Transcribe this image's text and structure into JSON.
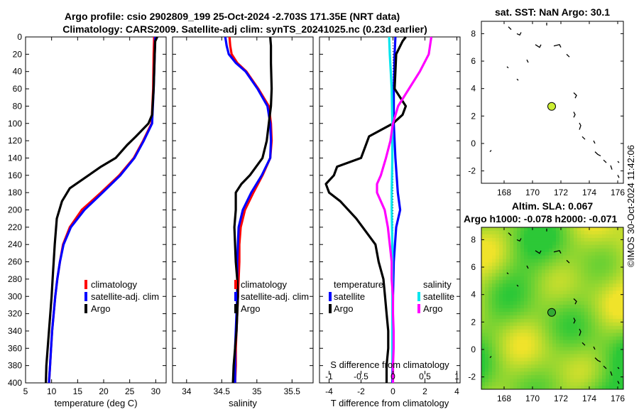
{
  "figure": {
    "title_line1": "Argo profile: csio 2902809_199 25-Oct-2024 -2.703S 171.35E (NRT data)",
    "title_line2": "Climatology: CARS2009. Satellite-adj clim: synTS_20241025.nc (0.23d earlier)",
    "footer": "©IMOS 30-Oct-2024 11:42:06"
  },
  "chart_data": [
    {
      "type": "line",
      "name": "temperature-profile",
      "xlabel": "temperature (deg C)",
      "ylabel": "",
      "xlim": [
        5,
        32
      ],
      "ylim": [
        400,
        0
      ],
      "xticks": [
        5,
        10,
        15,
        20,
        25,
        30
      ],
      "yticks": [
        0,
        20,
        40,
        60,
        80,
        100,
        120,
        140,
        160,
        180,
        200,
        220,
        240,
        260,
        280,
        300,
        320,
        340,
        360,
        380,
        400
      ],
      "series": [
        {
          "name": "climatology",
          "color": "#ff0000",
          "depth": [
            0,
            20,
            60,
            100,
            120,
            140,
            160,
            180,
            200,
            220,
            240,
            260,
            280,
            300,
            320,
            340,
            360,
            380,
            400
          ],
          "values": [
            29.7,
            29.6,
            29.5,
            29.2,
            27.6,
            25.8,
            23.0,
            19.5,
            15.8,
            13.5,
            12.2,
            11.6,
            11.1,
            10.7,
            10.4,
            10.1,
            9.9,
            9.7,
            9.5
          ]
        },
        {
          "name": "satellite-adj. clim",
          "color": "#0000ff",
          "depth": [
            0,
            20,
            60,
            100,
            120,
            140,
            160,
            180,
            200,
            220,
            240,
            260,
            280,
            300,
            320,
            340,
            360,
            380,
            400
          ],
          "values": [
            29.9,
            29.8,
            29.6,
            29.3,
            27.7,
            25.9,
            23.2,
            19.8,
            16.3,
            13.7,
            12.3,
            11.6,
            11.1,
            10.7,
            10.4,
            10.1,
            9.9,
            9.7,
            9.5
          ]
        },
        {
          "name": "Argo",
          "color": "#000000",
          "depth": [
            0,
            5,
            20,
            60,
            90,
            100,
            115,
            125,
            140,
            150,
            160,
            175,
            190,
            210,
            240,
            280,
            300,
            340,
            380,
            400
          ],
          "values": [
            30.3,
            29.9,
            29.8,
            29.6,
            29.3,
            28.6,
            26.2,
            24.5,
            22.3,
            19.5,
            17.1,
            13.5,
            12.0,
            11.0,
            10.6,
            10.2,
            10.0,
            9.5,
            9.0,
            8.9
          ]
        }
      ],
      "legend": [
        "climatology",
        "satellite-adj. clim",
        "Argo"
      ]
    },
    {
      "type": "line",
      "name": "salinity-profile",
      "xlabel": "salinity",
      "xlim": [
        33.8,
        35.8
      ],
      "ylim": [
        400,
        0
      ],
      "xticks": [
        34,
        34.5,
        35,
        35.5
      ],
      "series": [
        {
          "name": "climatology",
          "color": "#ff0000",
          "depth": [
            0,
            10,
            20,
            30,
            40,
            60,
            80,
            100,
            120,
            140,
            160,
            180,
            200,
            220,
            240,
            260,
            280,
            300,
            320,
            340,
            360,
            380,
            400
          ],
          "values": [
            34.61,
            34.62,
            34.64,
            34.72,
            34.85,
            35.02,
            35.17,
            35.2,
            35.21,
            35.19,
            35.08,
            34.95,
            34.83,
            34.77,
            34.75,
            34.75,
            34.74,
            34.73,
            34.72,
            34.71,
            34.7,
            34.7,
            34.69
          ]
        },
        {
          "name": "satellite-adj. clim",
          "color": "#0000ff",
          "depth": [
            0,
            10,
            20,
            30,
            40,
            60,
            80,
            100,
            120,
            140,
            160,
            180,
            200,
            220,
            240,
            260,
            280,
            300,
            320,
            340,
            360,
            380,
            400
          ],
          "values": [
            34.55,
            34.57,
            34.6,
            34.7,
            34.84,
            35.01,
            35.15,
            35.19,
            35.2,
            35.19,
            35.07,
            34.92,
            34.8,
            34.74,
            34.73,
            34.72,
            34.72,
            34.72,
            34.71,
            34.7,
            34.69,
            34.69,
            34.69
          ]
        },
        {
          "name": "Argo",
          "color": "#000000",
          "depth": [
            0,
            10,
            30,
            60,
            80,
            100,
            120,
            140,
            160,
            170,
            180,
            200,
            220,
            240,
            260,
            280,
            300,
            320,
            340,
            360,
            380,
            400
          ],
          "values": [
            35.19,
            35.2,
            35.2,
            35.21,
            35.2,
            35.17,
            35.14,
            35.08,
            34.9,
            34.78,
            34.7,
            34.7,
            34.68,
            34.69,
            34.7,
            34.72,
            34.73,
            34.72,
            34.71,
            34.69,
            34.67,
            34.66
          ]
        }
      ],
      "legend": [
        "climatology",
        "satellite-adj. clim",
        "Argo"
      ]
    },
    {
      "type": "line",
      "name": "difference-profile",
      "xlabel": "T difference from climatology",
      "xlabel_top": "S difference from climatology",
      "xlim": [
        -4.6,
        4.2
      ],
      "xticks": [
        -4,
        -2,
        0,
        2,
        4
      ],
      "xticks_top": [
        -1,
        -0.5,
        0,
        0.5,
        1
      ],
      "xticks_top_labels": [
        "-1",
        "-0.5",
        "0",
        "0.5",
        "1"
      ],
      "ylim": [
        400,
        0
      ],
      "series": [
        {
          "name": "temperature satellite",
          "color": "#0000ff",
          "depth": [
            0,
            20,
            60,
            100,
            140,
            180,
            200,
            220,
            260,
            300,
            340,
            380,
            400
          ],
          "values": [
            0.15,
            0.1,
            0.05,
            0.05,
            0.15,
            0.3,
            0.45,
            0.2,
            0.05,
            0.0,
            -0.02,
            -0.03,
            -0.04
          ]
        },
        {
          "name": "temperature Argo",
          "color": "#000000",
          "depth": [
            0,
            5,
            20,
            60,
            80,
            90,
            100,
            115,
            125,
            140,
            150,
            160,
            170,
            180,
            190,
            210,
            240,
            260,
            280,
            300,
            320,
            340,
            360,
            380,
            400
          ],
          "values": [
            0.8,
            0.6,
            0.2,
            0.1,
            0.8,
            0.6,
            0.0,
            -1.5,
            -1.7,
            -2.0,
            -3.5,
            -3.7,
            -4.2,
            -4.0,
            -3.3,
            -2.3,
            -1.1,
            -0.9,
            -0.6,
            -0.5,
            -0.4,
            -0.3,
            -0.3,
            -0.4,
            -0.4
          ]
        },
        {
          "name": "salinity satellite",
          "color": "#00e5ee",
          "depth": [
            0,
            20,
            60,
            100,
            140,
            180,
            200,
            240,
            280,
            320,
            360,
            400
          ],
          "values": [
            -0.06,
            -0.05,
            -0.02,
            -0.01,
            -0.01,
            -0.02,
            -0.02,
            -0.01,
            -0.01,
            -0.01,
            -0.01,
            0.0
          ]
        },
        {
          "name": "salinity Argo",
          "color": "#ff00ff",
          "depth": [
            0,
            10,
            20,
            40,
            60,
            80,
            100,
            120,
            140,
            160,
            170,
            180,
            200,
            220,
            240,
            260,
            280,
            300,
            320,
            340,
            360,
            380,
            400
          ],
          "values": [
            0.6,
            0.58,
            0.56,
            0.42,
            0.25,
            0.08,
            0.0,
            -0.04,
            -0.11,
            -0.19,
            -0.25,
            -0.25,
            -0.13,
            -0.08,
            -0.05,
            -0.02,
            -0.02,
            0.0,
            0.0,
            0.01,
            0.01,
            0.0,
            0.0
          ]
        }
      ],
      "legend_temperature_title": "temperature",
      "legend_salinity_title": "salinity",
      "legend_labels": {
        "t_sat": "satellite",
        "t_argo": "Argo",
        "s_sat": "satellite",
        "s_argo": "Argo"
      }
    },
    {
      "type": "scatter",
      "name": "sst-map",
      "title": "sat. SST: NaN Argo: 30.1",
      "xlim": [
        166.4,
        176.4
      ],
      "ylim": [
        -2.9,
        8.9
      ],
      "xticks": [
        168,
        170,
        172,
        174,
        176
      ],
      "yticks": [
        -2,
        0,
        2,
        4,
        6,
        8
      ],
      "float_position": {
        "lon": 171.35,
        "lat": 2.7,
        "color": "#ccee33"
      }
    },
    {
      "type": "heatmap",
      "name": "sla-map",
      "title_line1": "Altim. SLA: 0.067",
      "title_line2": "Argo h1000: -0.078 h2000: -0.071",
      "xlim": [
        166.4,
        176.4
      ],
      "ylim": [
        -2.9,
        8.9
      ],
      "xticks": [
        168,
        170,
        172,
        174,
        176
      ],
      "yticks": [
        -2,
        0,
        2,
        4,
        6,
        8
      ],
      "float_position": {
        "lon": 171.35,
        "lat": 2.7,
        "color": "#33aa33"
      },
      "colors": {
        "low": "#2cc837",
        "high": "#f0e32a",
        "mid": "#aaee22"
      }
    }
  ]
}
